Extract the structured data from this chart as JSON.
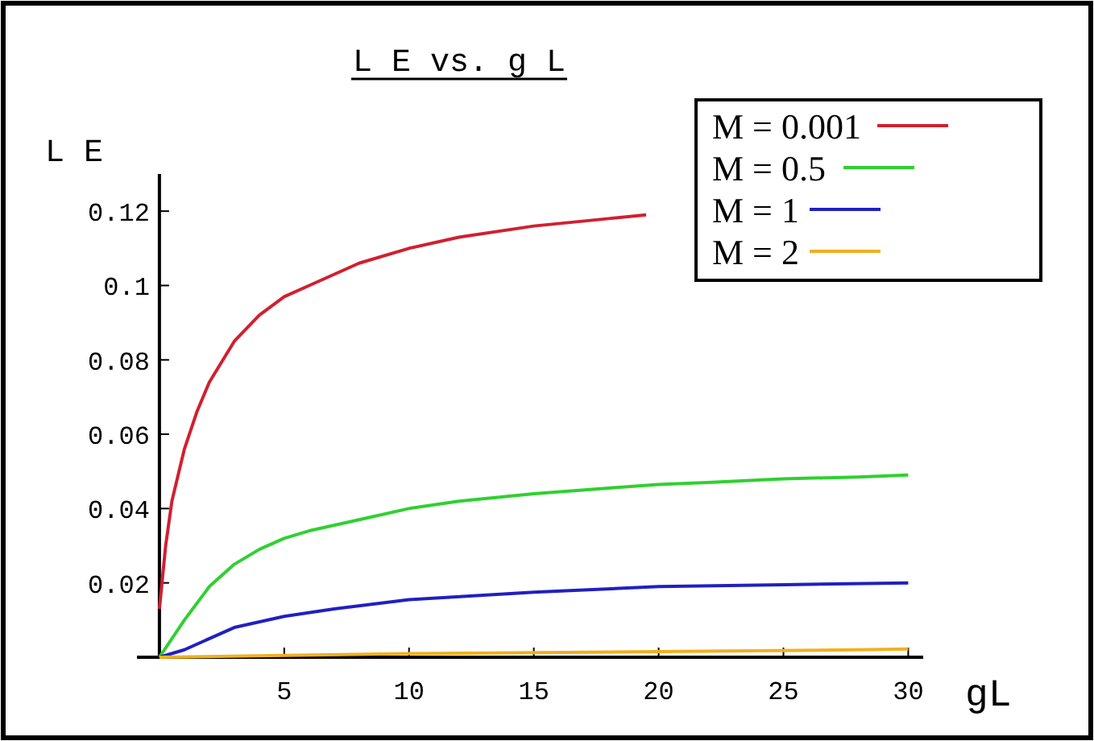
{
  "chart_data": {
    "type": "line",
    "title": "L E vs. g L",
    "xlabel": "gL",
    "ylabel": "L E",
    "xlim": [
      -0.9,
      30.6
    ],
    "ylim": [
      0,
      0.13
    ],
    "xticks": [
      5,
      10,
      15,
      20,
      25,
      30
    ],
    "yticks": [
      0.02,
      0.04,
      0.06,
      0.08,
      0.1,
      0.12
    ],
    "grid": false,
    "legend": "top right",
    "marker": "none",
    "line_style": "solid",
    "series": [
      {
        "name": "M = 0.001",
        "color": "#d02030",
        "x": [
          0,
          0.25,
          0.5,
          1,
          1.5,
          2,
          3,
          4,
          5,
          6,
          8,
          10,
          12,
          15,
          18,
          19.5
        ],
        "values": [
          0.013,
          0.03,
          0.042,
          0.056,
          0.066,
          0.074,
          0.085,
          0.092,
          0.097,
          0.1,
          0.106,
          0.11,
          0.113,
          0.116,
          0.118,
          0.119
        ]
      },
      {
        "name": "M = 0.5",
        "color": "#30d030",
        "x": [
          0,
          1,
          2,
          3,
          4,
          5,
          6,
          8,
          10,
          12,
          15,
          18,
          20,
          22,
          25,
          28,
          30
        ],
        "values": [
          0,
          0.01,
          0.019,
          0.025,
          0.029,
          0.032,
          0.034,
          0.037,
          0.04,
          0.042,
          0.044,
          0.0455,
          0.0465,
          0.047,
          0.048,
          0.0485,
          0.049
        ]
      },
      {
        "name": "M = 1",
        "color": "#2020c0",
        "x": [
          0,
          1,
          2,
          3,
          5,
          7,
          10,
          15,
          20,
          25,
          30
        ],
        "values": [
          0,
          0.002,
          0.005,
          0.008,
          0.011,
          0.013,
          0.0155,
          0.0175,
          0.019,
          0.0195,
          0.02
        ]
      },
      {
        "name": "M = 2",
        "color": "#f0b020",
        "x": [
          0,
          5,
          10,
          20,
          28,
          30
        ],
        "values": [
          0,
          0.0005,
          0.001,
          0.0015,
          0.002,
          0.0022
        ]
      }
    ]
  }
}
